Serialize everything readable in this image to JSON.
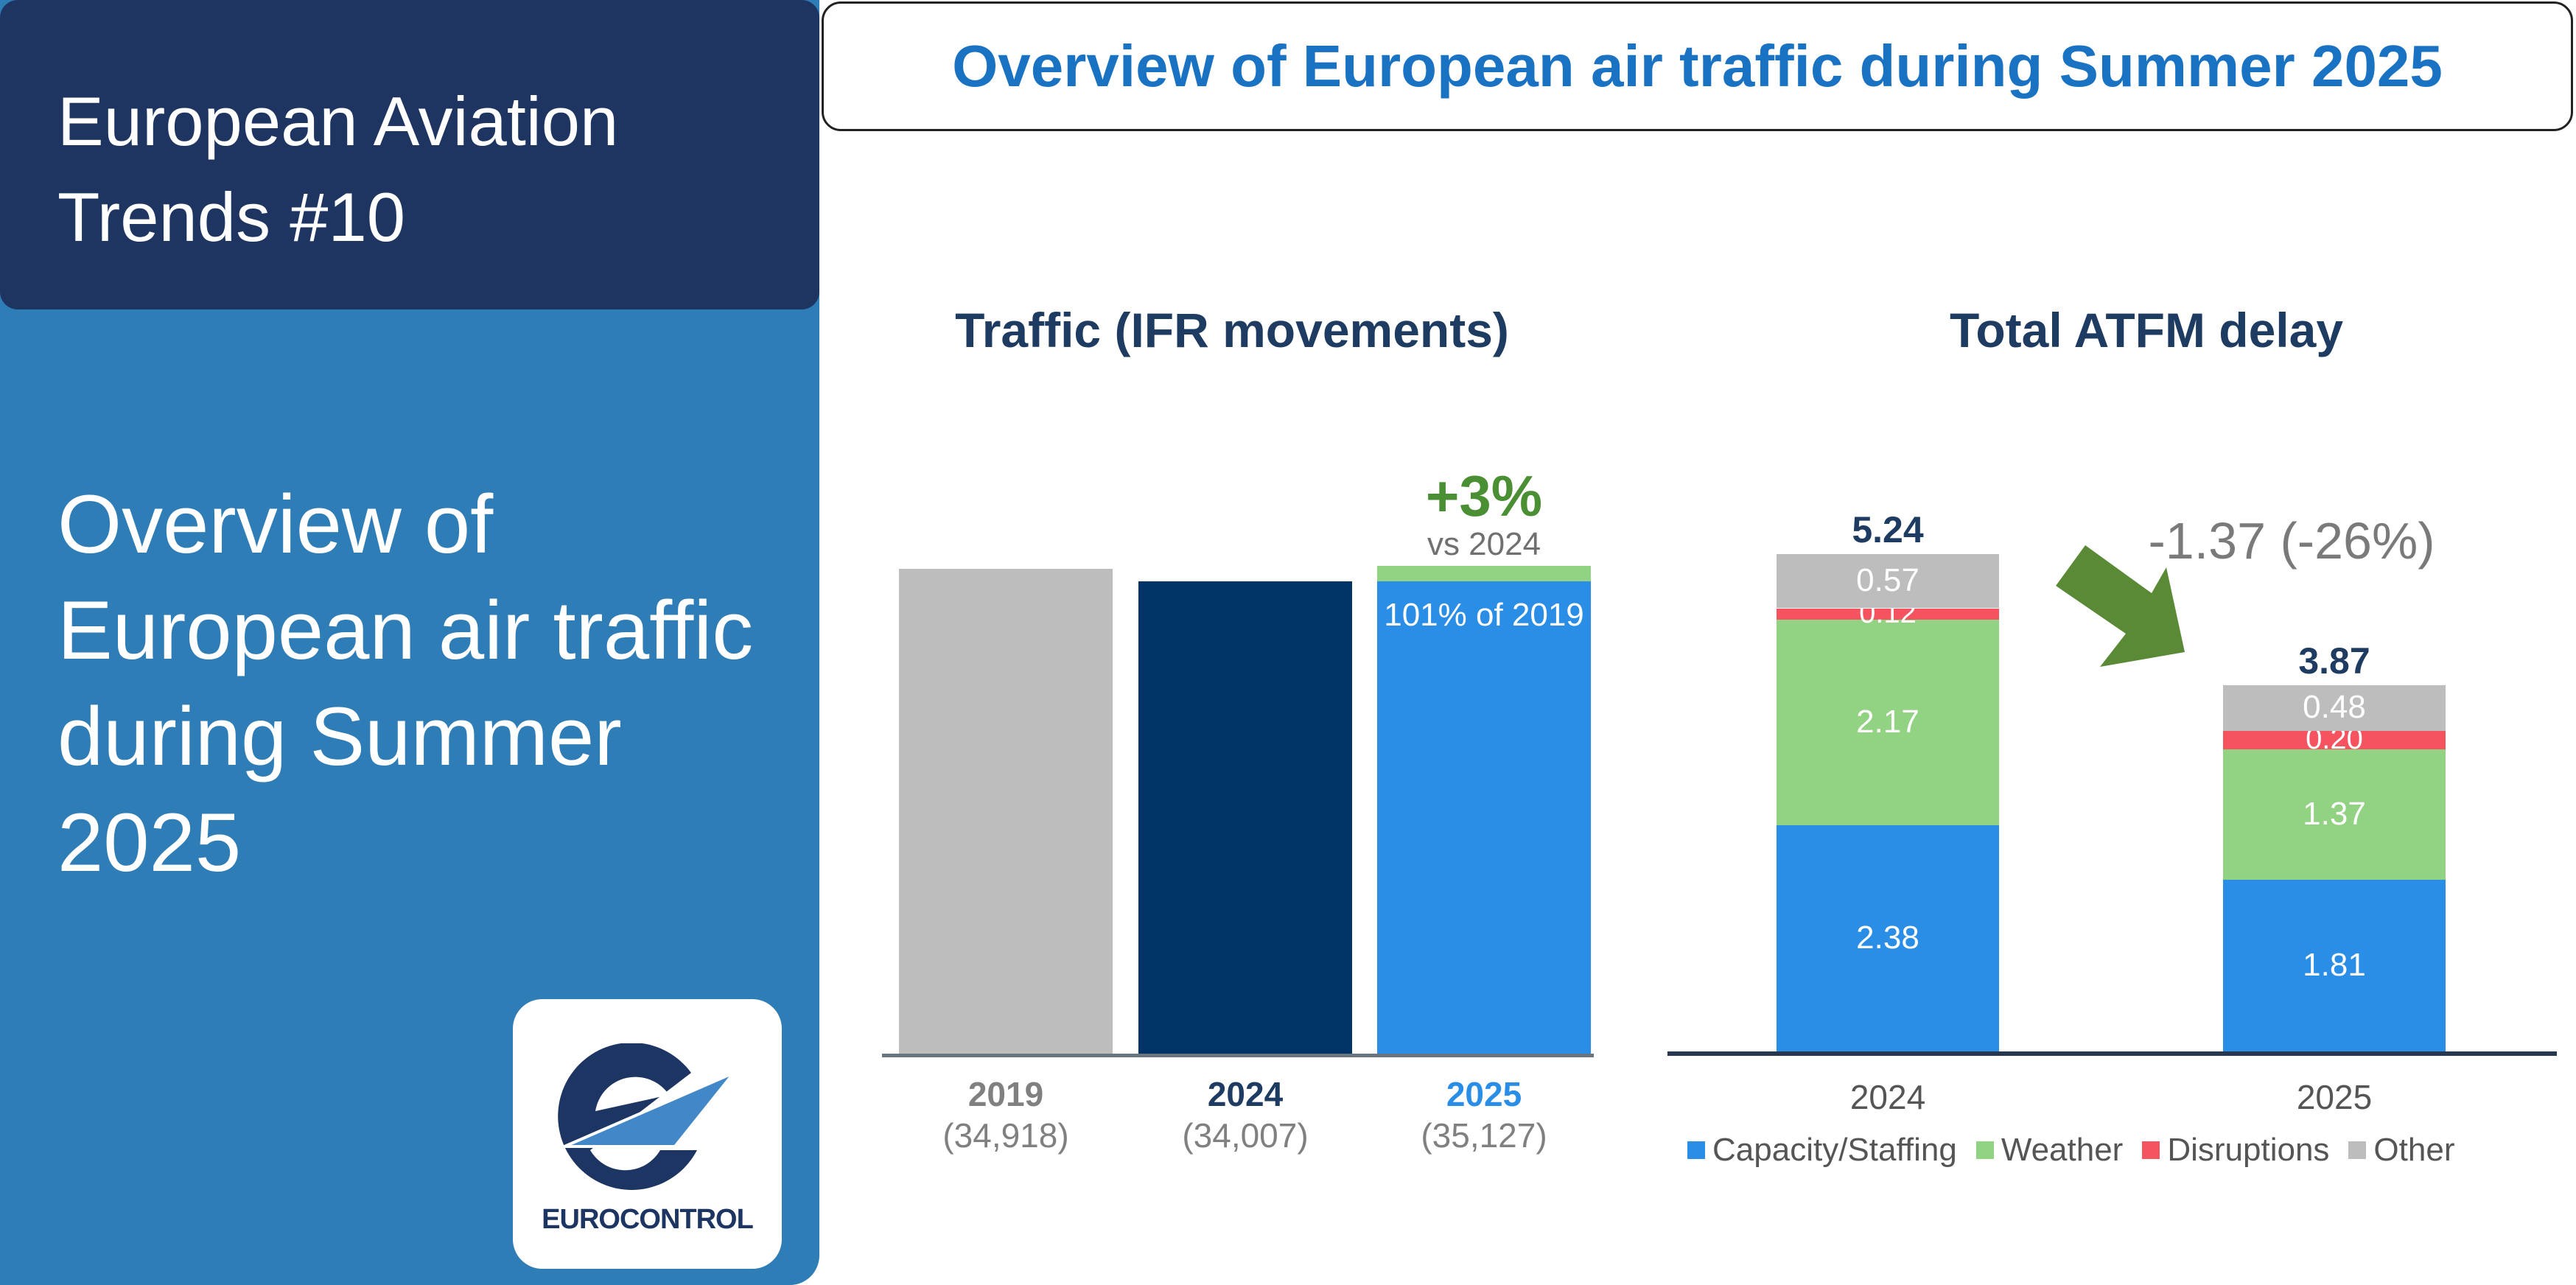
{
  "header": {
    "series": "European Aviation Trends #10",
    "subtitle": "Overview of European air traffic during Summer 2025",
    "banner": "Overview of European air traffic during Summer 2025",
    "logo_text": "EUROCONTROL"
  },
  "colors": {
    "panel": "#2f7db6",
    "badge": "#1f3561",
    "gray": "#bdbdbd",
    "navy": "#003366",
    "blue": "#2a8de6",
    "green": "#92d283",
    "red": "#f5535f",
    "arrow": "#5a8a36"
  },
  "chart_data": [
    {
      "type": "bar",
      "title": "Traffic (IFR movements)",
      "categories": [
        "2019",
        "2024",
        "2025"
      ],
      "values": [
        34918,
        34007,
        35127
      ],
      "value_labels": [
        "(34,918)",
        "(34,007)",
        "(35,127)"
      ],
      "bar_colors": [
        "#bdbdbd",
        "#003366",
        "#2a8de6"
      ],
      "label_colors": [
        "#808080",
        "#1e3b62",
        "#2a8de6"
      ],
      "annotation": {
        "change": "+3%",
        "change_sub": "vs 2024",
        "inside": "101% of 2019"
      }
    },
    {
      "type": "bar",
      "stacked": true,
      "title": "Total ATFM delay",
      "categories": [
        "2024",
        "2025"
      ],
      "series": [
        {
          "name": "Capacity/Staffing",
          "color": "#2a8de6",
          "values": [
            2.38,
            1.81
          ]
        },
        {
          "name": "Weather",
          "color": "#92d283",
          "values": [
            2.17,
            1.37
          ]
        },
        {
          "name": "Disruptions",
          "color": "#f5535f",
          "values": [
            0.12,
            0.2
          ]
        },
        {
          "name": "Other",
          "color": "#bdbdbd",
          "values": [
            0.57,
            0.48
          ]
        }
      ],
      "totals": [
        "5.24",
        "3.87"
      ],
      "segment_labels": [
        [
          "2.38",
          "2.17",
          "0.12",
          "0.57"
        ],
        [
          "1.81",
          "1.37",
          "0.20",
          "0.48"
        ]
      ],
      "annotation": "-1.37 (-26%)",
      "legend": "bottom"
    }
  ]
}
